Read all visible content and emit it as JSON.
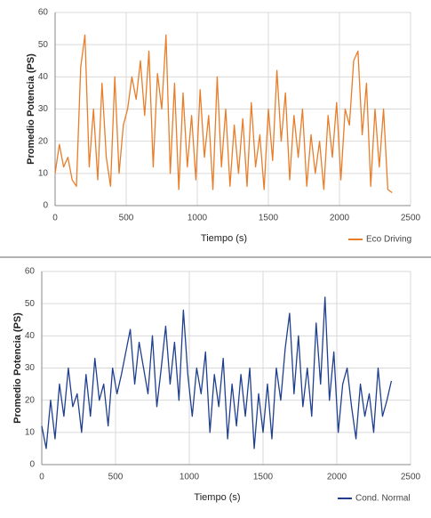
{
  "chart_data": [
    {
      "type": "line",
      "ylabel": "Promedio Potencia (PS)",
      "xlabel": "Tiempo (s)",
      "x": [
        0,
        30,
        60,
        90,
        120,
        150,
        180,
        210,
        240,
        270,
        300,
        330,
        360,
        390,
        420,
        450,
        480,
        510,
        540,
        570,
        600,
        630,
        660,
        690,
        720,
        750,
        780,
        810,
        840,
        870,
        900,
        930,
        960,
        990,
        1020,
        1050,
        1080,
        1110,
        1140,
        1170,
        1200,
        1230,
        1260,
        1290,
        1320,
        1350,
        1380,
        1410,
        1440,
        1470,
        1500,
        1530,
        1560,
        1590,
        1620,
        1650,
        1680,
        1710,
        1740,
        1770,
        1800,
        1830,
        1860,
        1890,
        1920,
        1950,
        1980,
        2010,
        2040,
        2070,
        2100,
        2130,
        2160,
        2190,
        2220,
        2250,
        2280,
        2310,
        2340,
        2370
      ],
      "series": [
        {
          "name": "Eco Driving",
          "color": "#e87d2a",
          "values": [
            10,
            19,
            12,
            15,
            8,
            6,
            43,
            53,
            12,
            30,
            8,
            38,
            15,
            6,
            40,
            10,
            25,
            30,
            40,
            33,
            45,
            28,
            48,
            12,
            41,
            30,
            53,
            10,
            38,
            5,
            35,
            12,
            28,
            8,
            36,
            15,
            28,
            5,
            40,
            12,
            30,
            6,
            25,
            10,
            27,
            6,
            32,
            12,
            22,
            5,
            30,
            14,
            42,
            20,
            35,
            8,
            28,
            15,
            30,
            6,
            22,
            10,
            20,
            5,
            28,
            15,
            32,
            8,
            30,
            25,
            45,
            48,
            22,
            38,
            6,
            30,
            12,
            30,
            5,
            4
          ]
        }
      ],
      "xlim": [
        0,
        2500
      ],
      "ylim": [
        0,
        60
      ],
      "xticks": [
        0,
        500,
        1000,
        1500,
        2000,
        2500
      ],
      "yticks": [
        0,
        10,
        20,
        30,
        40,
        50,
        60
      ],
      "grid": true,
      "legend": "bottom-right"
    },
    {
      "type": "line",
      "ylabel": "Promedio Potencia (PS)",
      "xlabel": "Tiempo (s)",
      "x": [
        0,
        30,
        60,
        90,
        120,
        150,
        180,
        210,
        240,
        270,
        300,
        330,
        360,
        390,
        420,
        450,
        480,
        510,
        540,
        570,
        600,
        630,
        660,
        690,
        720,
        750,
        780,
        810,
        840,
        870,
        900,
        930,
        960,
        990,
        1020,
        1050,
        1080,
        1110,
        1140,
        1170,
        1200,
        1230,
        1260,
        1290,
        1320,
        1350,
        1380,
        1410,
        1440,
        1470,
        1500,
        1530,
        1560,
        1590,
        1620,
        1650,
        1680,
        1710,
        1740,
        1770,
        1800,
        1830,
        1860,
        1890,
        1920,
        1950,
        1980,
        2010,
        2040,
        2070,
        2100,
        2130,
        2160,
        2190,
        2220,
        2250,
        2280,
        2310,
        2340,
        2370
      ],
      "series": [
        {
          "name": "Cond. Normal",
          "color": "#1f3f8f",
          "values": [
            12,
            5,
            20,
            8,
            25,
            15,
            30,
            18,
            22,
            10,
            28,
            15,
            33,
            20,
            25,
            12,
            30,
            22,
            28,
            35,
            42,
            25,
            38,
            30,
            22,
            40,
            18,
            30,
            43,
            25,
            38,
            20,
            48,
            28,
            15,
            30,
            22,
            35,
            10,
            28,
            18,
            33,
            8,
            25,
            12,
            28,
            15,
            30,
            5,
            22,
            10,
            25,
            8,
            30,
            20,
            36,
            47,
            22,
            40,
            18,
            30,
            15,
            44,
            25,
            52,
            20,
            35,
            10,
            25,
            30,
            18,
            8,
            25,
            15,
            22,
            10,
            30,
            15,
            20,
            26
          ]
        }
      ],
      "xlim": [
        0,
        2500
      ],
      "ylim": [
        0,
        60
      ],
      "xticks": [
        0,
        500,
        1000,
        1500,
        2000,
        2500
      ],
      "yticks": [
        0,
        10,
        20,
        30,
        40,
        50,
        60
      ],
      "grid": true,
      "legend": "bottom-right"
    }
  ]
}
